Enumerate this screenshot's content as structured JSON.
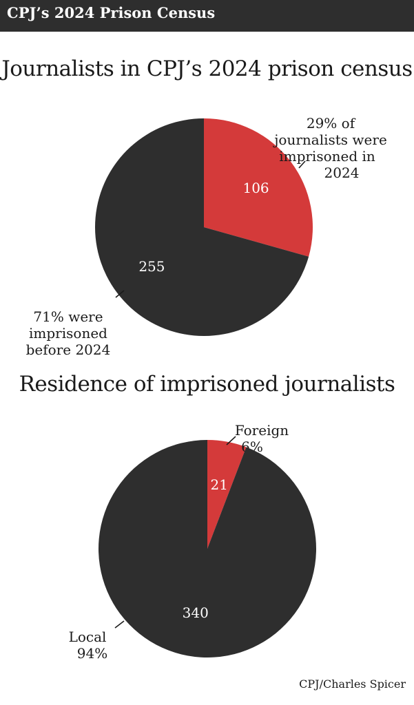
{
  "header": {
    "title": "CPJ’s 2024 Prison Census"
  },
  "colors": {
    "dark": "#2e2e2e",
    "accent": "#d43a3a"
  },
  "chart_data": [
    {
      "type": "pie",
      "title": "Journalists in CPJ’s 2024 prison census",
      "slices": [
        {
          "label": "Imprisoned in 2024",
          "value": 106,
          "percent": 29,
          "color": "#d43a3a",
          "annotation": [
            "29% of",
            "journalists were",
            "imprisoned in",
            "2024"
          ]
        },
        {
          "label": "Imprisoned before 2024",
          "value": 255,
          "percent": 71,
          "color": "#2e2e2e",
          "annotation": [
            "71% were",
            "imprisoned",
            "before 2024"
          ]
        }
      ]
    },
    {
      "type": "pie",
      "title": "Residence of imprisoned journalists",
      "slices": [
        {
          "label": "Foreign",
          "value": 21,
          "percent": 6,
          "color": "#d43a3a",
          "annotation": [
            "Foreign",
            "6%"
          ]
        },
        {
          "label": "Local",
          "value": 340,
          "percent": 94,
          "color": "#2e2e2e",
          "annotation": [
            "Local",
            "94%"
          ]
        }
      ]
    }
  ],
  "credit": "CPJ/Charles Spicer"
}
